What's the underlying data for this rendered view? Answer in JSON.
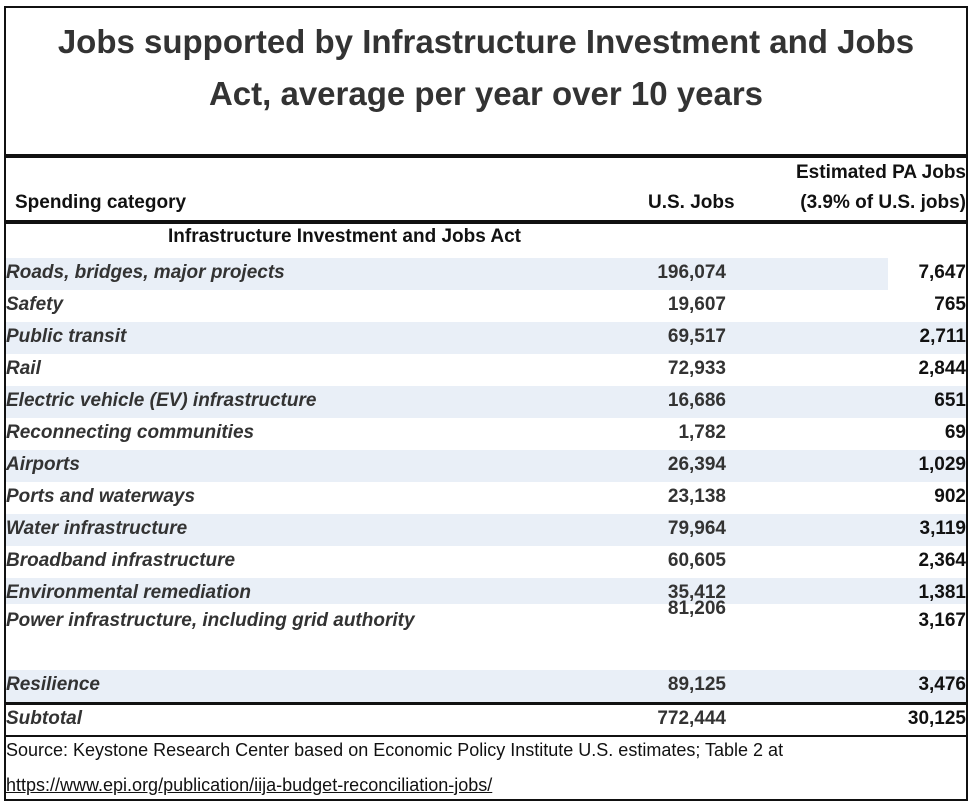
{
  "chart_data": {
    "type": "table",
    "title_line1": "Jobs supported by Infrastructure Investment and Jobs",
    "title_line2": "Act, average per year over 10 years",
    "columns": {
      "category": "Spending category",
      "us": "U.S. Jobs",
      "pa_line1": "Estimated PA Jobs",
      "pa_line2": "(3.9% of U.S. jobs)"
    },
    "section": "Infrastructure Investment and Jobs Act",
    "rows": [
      {
        "category": "Roads, bridges, major projects",
        "us": "196,074",
        "pa": "7,647"
      },
      {
        "category": "Safety",
        "us": "19,607",
        "pa": "765"
      },
      {
        "category": "Public transit",
        "us": "69,517",
        "pa": "2,711"
      },
      {
        "category": "Rail",
        "us": "72,933",
        "pa": "2,844"
      },
      {
        "category": "Electric vehicle (EV) infrastructure",
        "us": "16,686",
        "pa": "651"
      },
      {
        "category": "Reconnecting communities",
        "us": "1,782",
        "pa": "69"
      },
      {
        "category": "Airports",
        "us": "26,394",
        "pa": "1,029"
      },
      {
        "category": "Ports and waterways",
        "us": "23,138",
        "pa": "902"
      },
      {
        "category": "Water infrastructure",
        "us": "79,964",
        "pa": "3,119"
      },
      {
        "category": "Broadband infrastructure",
        "us": "60,605",
        "pa": "2,364"
      },
      {
        "category": "Environmental remediation",
        "us": "35,412",
        "pa": "1,381"
      },
      {
        "category": "Power infrastructure, including grid authority",
        "us": "81,206",
        "pa": "3,167"
      },
      {
        "category": "Resilience",
        "us": "89,125",
        "pa": "3,476"
      }
    ],
    "subtotal": {
      "category": "Subtotal",
      "us": "772,444",
      "pa": "30,125"
    },
    "source_line1": "Source: Keystone Research Center based on Economic Policy Institute U.S. estimates; Table 2 at",
    "source_line2": "https://www.epi.org/publication/iija-budget-reconciliation-jobs/"
  }
}
